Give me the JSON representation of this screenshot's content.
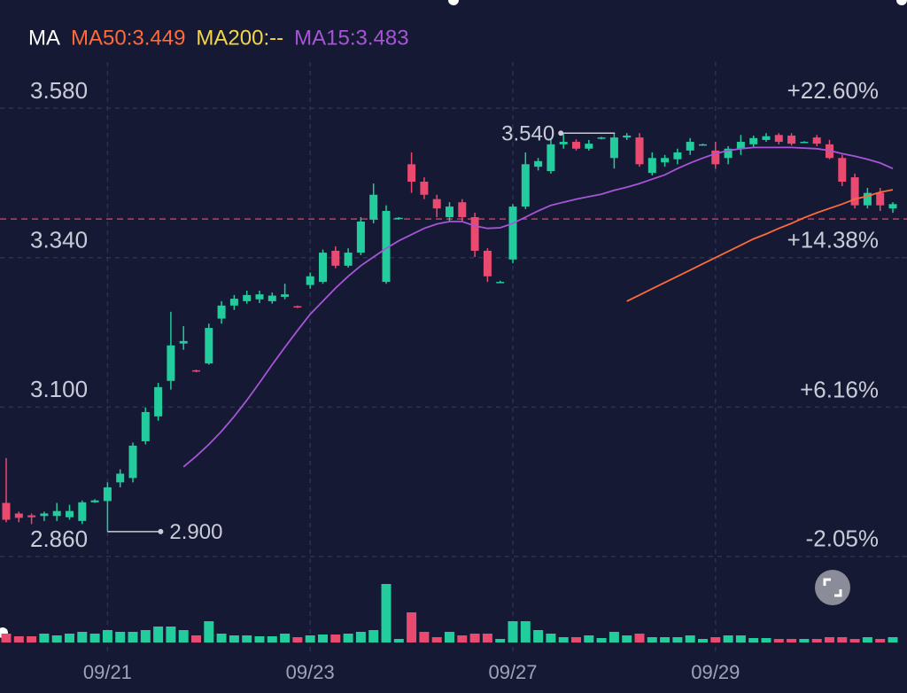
{
  "chart_data": {
    "type": "candlestick",
    "ma_label": "MA",
    "categories": [
      null,
      null,
      null,
      null,
      null,
      null,
      null,
      null,
      "09/21",
      null,
      null,
      null,
      null,
      null,
      null,
      null,
      null,
      null,
      null,
      null,
      null,
      null,
      null,
      null,
      "09/23",
      null,
      null,
      null,
      null,
      null,
      null,
      null,
      null,
      null,
      null,
      null,
      null,
      null,
      null,
      null,
      "09/27",
      null,
      null,
      null,
      null,
      null,
      null,
      null,
      null,
      null,
      null,
      null,
      null,
      null,
      null,
      null,
      "09/29",
      null,
      null,
      null,
      null,
      null,
      null,
      null,
      null,
      null,
      null,
      null,
      null,
      null,
      null
    ],
    "open": [
      2.946,
      2.929,
      2.926,
      2.925,
      2.925,
      2.923,
      2.917,
      2.947,
      2.949,
      2.979,
      2.986,
      3.045,
      3.085,
      3.142,
      3.202,
      3.159,
      3.17,
      3.242,
      3.263,
      3.27,
      3.273,
      3.27,
      3.277,
      3.262,
      3.296,
      3.301,
      3.351,
      3.327,
      3.348,
      3.401,
      3.301,
      3.402,
      3.49,
      3.462,
      3.434,
      3.405,
      3.429,
      3.405,
      3.351,
      3.301,
      3.337,
      3.422,
      3.486,
      3.479,
      3.522,
      3.526,
      3.515,
      3.532,
      3.5,
      3.533,
      3.533,
      3.476,
      3.493,
      3.498,
      3.512,
      3.521,
      3.512,
      3.5,
      3.515,
      3.522,
      3.529,
      3.537,
      3.536,
      3.526,
      3.533,
      3.522,
      3.5,
      3.469,
      3.424,
      3.444,
      3.419
    ],
    "high": [
      3.018,
      2.932,
      2.929,
      2.932,
      2.946,
      2.943,
      2.95,
      2.952,
      2.979,
      3.0,
      3.043,
      3.099,
      3.139,
      3.253,
      3.23,
      3.16,
      3.234,
      3.27,
      3.28,
      3.287,
      3.287,
      3.284,
      3.298,
      3.263,
      3.316,
      3.353,
      3.358,
      3.355,
      3.405,
      3.459,
      3.424,
      3.405,
      3.509,
      3.469,
      3.441,
      3.429,
      3.434,
      3.412,
      3.355,
      3.303,
      3.426,
      3.509,
      3.5,
      3.53,
      3.54,
      3.53,
      3.529,
      3.534,
      3.54,
      3.54,
      3.54,
      3.509,
      3.505,
      3.515,
      3.532,
      3.523,
      3.526,
      3.519,
      3.537,
      3.536,
      3.54,
      3.54,
      3.54,
      3.527,
      3.537,
      3.529,
      3.505,
      3.475,
      3.452,
      3.452,
      3.429
    ],
    "low": [
      2.915,
      2.915,
      2.912,
      2.917,
      2.917,
      2.919,
      2.912,
      2.946,
      2.9,
      2.971,
      2.979,
      3.04,
      3.078,
      3.128,
      3.192,
      3.156,
      3.168,
      3.234,
      3.256,
      3.266,
      3.267,
      3.266,
      3.273,
      3.259,
      3.29,
      3.298,
      3.323,
      3.324,
      3.344,
      3.395,
      3.298,
      3.401,
      3.444,
      3.434,
      3.405,
      3.398,
      3.398,
      3.341,
      3.301,
      3.3,
      3.331,
      3.418,
      3.48,
      3.475,
      3.515,
      3.512,
      3.512,
      3.53,
      3.483,
      3.529,
      3.486,
      3.472,
      3.486,
      3.49,
      3.505,
      3.52,
      3.483,
      3.49,
      3.505,
      3.517,
      3.526,
      3.522,
      3.52,
      3.525,
      3.519,
      3.498,
      3.455,
      3.419,
      3.419,
      3.415,
      3.412
    ],
    "close": [
      2.919,
      2.922,
      2.923,
      2.929,
      2.933,
      2.933,
      2.947,
      2.95,
      2.971,
      2.993,
      3.038,
      3.092,
      3.132,
      3.199,
      3.206,
      3.158,
      3.227,
      3.263,
      3.274,
      3.28,
      3.281,
      3.279,
      3.281,
      3.26,
      3.31,
      3.348,
      3.327,
      3.348,
      3.398,
      3.441,
      3.415,
      3.404,
      3.462,
      3.441,
      3.419,
      3.422,
      3.405,
      3.351,
      3.31,
      3.301,
      3.422,
      3.49,
      3.495,
      3.522,
      3.526,
      3.515,
      3.523,
      3.533,
      3.533,
      3.536,
      3.49,
      3.5,
      3.5,
      3.509,
      3.526,
      3.522,
      3.49,
      3.515,
      3.526,
      3.532,
      3.535,
      3.526,
      3.523,
      3.526,
      3.523,
      3.5,
      3.462,
      3.424,
      3.444,
      3.424,
      3.426
    ],
    "volume": [
      10,
      7,
      7,
      10,
      8,
      10,
      12,
      10,
      14,
      12,
      12,
      14,
      18,
      18,
      14,
      8,
      24,
      10,
      8,
      8,
      7,
      7,
      10,
      6,
      8,
      9,
      9,
      10,
      12,
      14,
      66,
      4,
      34,
      12,
      6,
      12,
      8,
      10,
      10,
      4,
      24,
      24,
      14,
      10,
      6,
      6,
      8,
      5,
      12,
      8,
      10,
      6,
      6,
      6,
      8,
      4,
      6,
      8,
      8,
      5,
      5,
      4,
      4,
      4,
      4,
      6,
      6,
      4,
      6,
      4,
      6
    ],
    "up_color": "#22cc9d",
    "down_color": "#ea4a70",
    "series": [
      {
        "name": "MA50:3.449",
        "color": "#ff6a3a",
        "values": [
          null,
          null,
          null,
          null,
          null,
          null,
          null,
          null,
          null,
          null,
          null,
          null,
          null,
          null,
          null,
          null,
          null,
          null,
          null,
          null,
          null,
          null,
          null,
          null,
          null,
          null,
          null,
          null,
          null,
          null,
          null,
          null,
          null,
          null,
          null,
          null,
          null,
          null,
          null,
          null,
          null,
          null,
          null,
          null,
          null,
          null,
          null,
          null,
          null,
          3.27,
          3.28,
          3.29,
          3.3,
          3.31,
          3.32,
          3.33,
          3.34,
          3.35,
          3.36,
          3.37,
          3.378,
          3.387,
          3.395,
          3.404,
          3.412,
          3.419,
          3.426,
          3.434,
          3.439,
          3.445,
          3.449
        ]
      },
      {
        "name": "MA200:--",
        "color": "#f3d64b",
        "values": [
          null,
          null,
          null,
          null,
          null,
          null,
          null,
          null,
          null,
          null,
          null,
          null,
          null,
          null,
          null,
          null,
          null,
          null,
          null,
          null,
          null,
          null,
          null,
          null,
          null,
          null,
          null,
          null,
          null,
          null,
          null,
          null,
          null,
          null,
          null,
          null,
          null,
          null,
          null,
          null,
          null,
          null,
          null,
          null,
          null,
          null,
          null,
          null,
          null,
          null,
          null,
          null,
          null,
          null,
          null,
          null,
          null,
          null,
          null,
          null,
          null,
          null,
          null,
          null,
          null,
          null,
          null,
          null,
          null,
          null,
          null
        ]
      },
      {
        "name": "MA15:3.483",
        "color": "#a655d6",
        "values": [
          null,
          null,
          null,
          null,
          null,
          null,
          null,
          null,
          null,
          null,
          null,
          null,
          null,
          null,
          3.004,
          3.021,
          3.04,
          3.061,
          3.085,
          3.111,
          3.139,
          3.168,
          3.196,
          3.223,
          3.249,
          3.27,
          3.291,
          3.31,
          3.327,
          3.341,
          3.355,
          3.367,
          3.377,
          3.387,
          3.394,
          3.398,
          3.398,
          3.391,
          3.387,
          3.388,
          3.395,
          3.405,
          3.415,
          3.424,
          3.429,
          3.434,
          3.438,
          3.442,
          3.448,
          3.453,
          3.459,
          3.466,
          3.473,
          3.483,
          3.492,
          3.5,
          3.507,
          3.512,
          3.515,
          3.517,
          3.517,
          3.517,
          3.517,
          3.516,
          3.515,
          3.512,
          3.507,
          3.503,
          3.498,
          3.492,
          3.483
        ]
      }
    ],
    "reference_line": {
      "value": 3.402,
      "color": "#e84a6f"
    },
    "annotations": [
      {
        "label": "3.540",
        "value": 3.54,
        "anchor": "high"
      },
      {
        "label": "2.900",
        "value": 2.9,
        "anchor": "low"
      }
    ],
    "ylim": [
      2.83,
      3.62
    ],
    "yticks": [
      {
        "value": 3.58,
        "label": "3.580"
      },
      {
        "value": 3.34,
        "label": "3.340"
      },
      {
        "value": 3.1,
        "label": "3.100"
      },
      {
        "value": 2.86,
        "label": "2.860"
      }
    ],
    "y2lim": [
      -3.08,
      23.97
    ],
    "y2ticks": [
      {
        "value": 22.6,
        "label": "+22.60%"
      },
      {
        "value": 14.38,
        "label": "+14.38%"
      },
      {
        "value": 6.16,
        "label": "+6.16%"
      },
      {
        "value": -2.05,
        "label": "-2.05%"
      }
    ],
    "grid": true
  }
}
